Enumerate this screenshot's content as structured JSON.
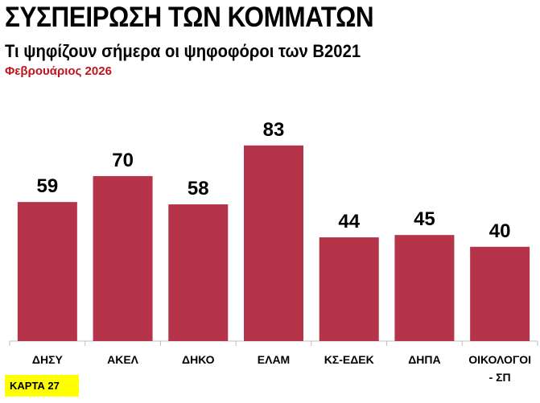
{
  "title": "ΣΥΣΠΕΙΡΩΣΗ ΤΩΝ ΚΟΜΜΑΤΩΝ",
  "subtitle": "Τι ψηφίζουν σήμερα οι ψηφοφόροι των Β2021",
  "date": "Φεβρουάριος 2026",
  "badge": "ΚΑΡΤΑ 27",
  "chart_data": {
    "type": "bar",
    "title": "ΣΥΣΠΕΙΡΩΣΗ ΤΩΝ ΚΟΜΜΑΤΩΝ",
    "categories": [
      "ΔΗΣΥ",
      "ΑΚΕΛ",
      "ΔΗΚΟ",
      "ΕΛΑΜ",
      "ΚΣ-ΕΔΕΚ",
      "ΔΗΠΑ",
      "ΟΙΚΟΛΟΓΟΙ - ΣΠ"
    ],
    "category_lines": [
      [
        "ΔΗΣΥ"
      ],
      [
        "ΑΚΕΛ"
      ],
      [
        "ΔΗΚΟ"
      ],
      [
        "ΕΛΑΜ"
      ],
      [
        "ΚΣ-ΕΔΕΚ"
      ],
      [
        "ΔΗΠΑ"
      ],
      [
        "ΟΙΚΟΛΟΓΟΙ",
        "- ΣΠ"
      ]
    ],
    "values": [
      59,
      70,
      58,
      83,
      44,
      45,
      40
    ],
    "xlabel": "",
    "ylabel": "",
    "ylim": [
      0,
      85
    ],
    "grid": false,
    "legend": "none",
    "bar_color": "#b5344a"
  }
}
